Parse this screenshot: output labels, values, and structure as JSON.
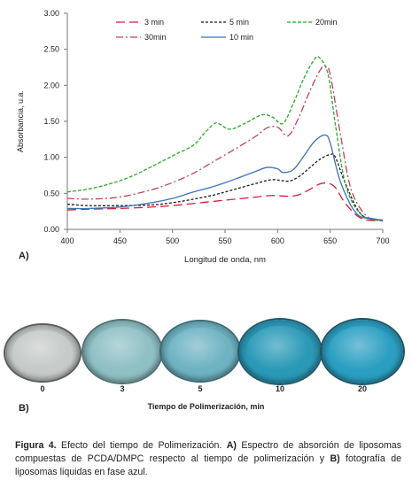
{
  "chart_data": {
    "type": "line",
    "xlabel": "Longitud de onda, nm",
    "ylabel": "Absorbancia, u.a.",
    "xlim": [
      400,
      700
    ],
    "ylim": [
      0,
      3
    ],
    "xticks": [
      "400",
      "450",
      "500",
      "550",
      "600",
      "650",
      "700"
    ],
    "yticks": [
      "0.00",
      "0.50",
      "1.00",
      "1.50",
      "2.00",
      "2.50",
      "3.00"
    ],
    "legend_position": "top",
    "series": [
      {
        "name": "3 min",
        "color": "#d0203a",
        "dash": "10,5",
        "x": [
          400,
          420,
          450,
          480,
          500,
          520,
          540,
          560,
          580,
          595,
          610,
          620,
          630,
          640,
          648,
          655,
          665,
          680,
          700
        ],
        "y": [
          0.27,
          0.28,
          0.29,
          0.31,
          0.33,
          0.36,
          0.39,
          0.42,
          0.45,
          0.47,
          0.46,
          0.48,
          0.55,
          0.63,
          0.64,
          0.58,
          0.35,
          0.15,
          0.12
        ]
      },
      {
        "name": "5 min",
        "color": "#1a1a1a",
        "dash": "3,2",
        "x": [
          400,
          420,
          450,
          480,
          500,
          520,
          540,
          560,
          580,
          595,
          610,
          620,
          630,
          640,
          650,
          655,
          665,
          680,
          700
        ],
        "y": [
          0.35,
          0.33,
          0.33,
          0.34,
          0.37,
          0.42,
          0.48,
          0.56,
          0.64,
          0.69,
          0.67,
          0.73,
          0.85,
          0.97,
          1.04,
          1.0,
          0.62,
          0.2,
          0.13
        ]
      },
      {
        "name": "20min",
        "color": "#2aa82a",
        "dash": "4,2",
        "x": [
          400,
          420,
          440,
          460,
          480,
          500,
          520,
          530,
          540,
          545,
          555,
          570,
          585,
          595,
          605,
          615,
          625,
          635,
          640,
          648,
          655,
          665,
          680,
          700
        ],
        "y": [
          0.52,
          0.56,
          0.63,
          0.73,
          0.87,
          1.02,
          1.17,
          1.33,
          1.47,
          1.46,
          1.39,
          1.48,
          1.59,
          1.56,
          1.47,
          1.75,
          2.1,
          2.36,
          2.38,
          2.15,
          1.45,
          0.6,
          0.2,
          0.12
        ]
      },
      {
        "name": "30min",
        "color": "#c0405a",
        "dash": "8,3,2,3",
        "x": [
          400,
          420,
          450,
          480,
          500,
          520,
          540,
          560,
          580,
          590,
          600,
          610,
          620,
          630,
          640,
          645,
          650,
          660,
          670,
          685,
          700
        ],
        "y": [
          0.43,
          0.42,
          0.45,
          0.55,
          0.65,
          0.78,
          0.95,
          1.12,
          1.3,
          1.41,
          1.42,
          1.3,
          1.55,
          1.9,
          2.2,
          2.26,
          2.15,
          1.3,
          0.55,
          0.18,
          0.12
        ]
      },
      {
        "name": "10 min",
        "color": "#3f72b8",
        "dash": "",
        "x": [
          400,
          420,
          450,
          480,
          500,
          520,
          540,
          560,
          580,
          590,
          600,
          605,
          615,
          625,
          635,
          645,
          650,
          660,
          675,
          690,
          700
        ],
        "y": [
          0.29,
          0.29,
          0.31,
          0.37,
          0.43,
          0.52,
          0.6,
          0.7,
          0.81,
          0.86,
          0.84,
          0.79,
          0.83,
          1.02,
          1.22,
          1.31,
          1.2,
          0.65,
          0.22,
          0.15,
          0.13
        ]
      }
    ]
  },
  "panel_a_label": "A)",
  "panel_b_label": "B)",
  "photo": {
    "xlabel": "Tiempo de Polimerización, min",
    "samples": [
      {
        "time": "0",
        "color": "#c6cac9",
        "rim": "#5a5e5e"
      },
      {
        "time": "3",
        "color": "#8fc0c4",
        "rim": "#4f6f72"
      },
      {
        "time": "5",
        "color": "#6fb3c2",
        "rim": "#3e6a75"
      },
      {
        "time": "10",
        "color": "#2a99b7",
        "rim": "#1e5a6c"
      },
      {
        "time": "20",
        "color": "#2a9fc2",
        "rim": "#1c5668"
      }
    ]
  },
  "caption": {
    "lead": "Figura 4.",
    "text1": " Efecto del tiempo de Polimerización. ",
    "a_label": "A)",
    "text2": " Espectro de absorción de liposomas compuestas de PCDA/DMPC respecto al tiempo de polimerización y ",
    "b_label": "B)",
    "text3": " fotografía de liposomas liquidas en fase azul."
  }
}
